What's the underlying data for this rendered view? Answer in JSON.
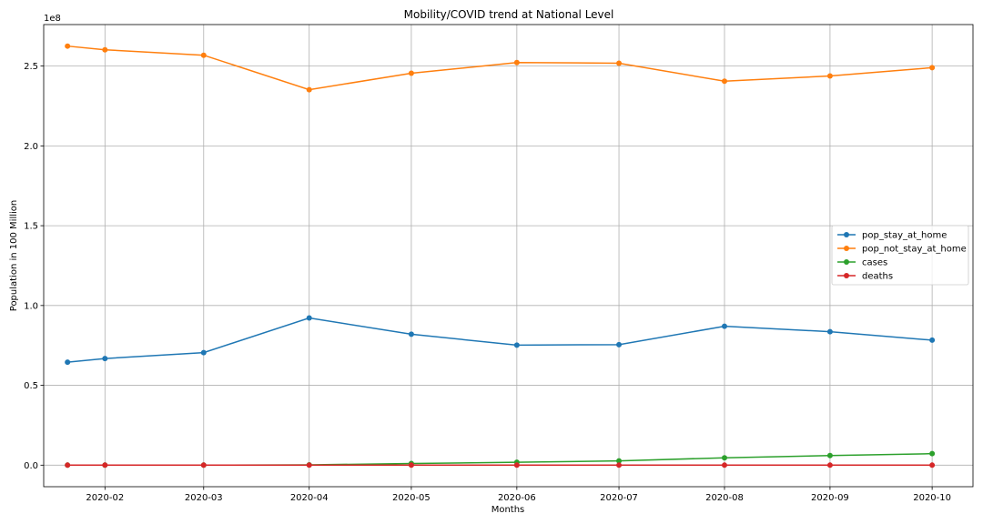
{
  "chart_data": {
    "type": "line",
    "title": "Mobility/COVID trend at National Level",
    "xlabel": "Months",
    "ylabel": "Population in 100 Million",
    "y_offset_label": "1e8",
    "x_tick_labels": [
      "2020-02",
      "2020-03",
      "2020-04",
      "2020-05",
      "2020-06",
      "2020-07",
      "2020-08",
      "2020-09",
      "2020-10"
    ],
    "y_tick_labels": [
      "0.0",
      "0.5",
      "1.0",
      "1.5",
      "2.0",
      "2.5"
    ],
    "y_tick_values": [
      0.0,
      0.5,
      1.0,
      1.5,
      2.0,
      2.5
    ],
    "ylim": [
      -0.135,
      2.76
    ],
    "xlim": [
      "2020-01-14",
      "2020-10-13"
    ],
    "grid": true,
    "legend_position": "center-right",
    "x": [
      "2020-01-21",
      "2020-02-01",
      "2020-03-01",
      "2020-04-01",
      "2020-05-01",
      "2020-06-01",
      "2020-07-01",
      "2020-08-01",
      "2020-09-01",
      "2020-10-01"
    ],
    "series": [
      {
        "name": "pop_stay_at_home",
        "color": "#1f77b4",
        "values": [
          0.645,
          0.668,
          0.705,
          0.922,
          0.82,
          0.752,
          0.755,
          0.87,
          0.836,
          0.783
        ]
      },
      {
        "name": "pop_not_stay_at_home",
        "color": "#ff7f0e",
        "values": [
          2.625,
          2.602,
          2.568,
          2.352,
          2.455,
          2.522,
          2.518,
          2.405,
          2.438,
          2.49
        ]
      },
      {
        "name": "cases",
        "color": "#2ca02c",
        "values": [
          0.0,
          0.0,
          0.0,
          0.002,
          0.01,
          0.018,
          0.027,
          0.046,
          0.06,
          0.072
        ]
      },
      {
        "name": "deaths",
        "color": "#d62728",
        "values": [
          0.0,
          0.0,
          0.0,
          0.0,
          0.0,
          0.0,
          0.0,
          0.0,
          0.0,
          0.0
        ]
      }
    ]
  }
}
